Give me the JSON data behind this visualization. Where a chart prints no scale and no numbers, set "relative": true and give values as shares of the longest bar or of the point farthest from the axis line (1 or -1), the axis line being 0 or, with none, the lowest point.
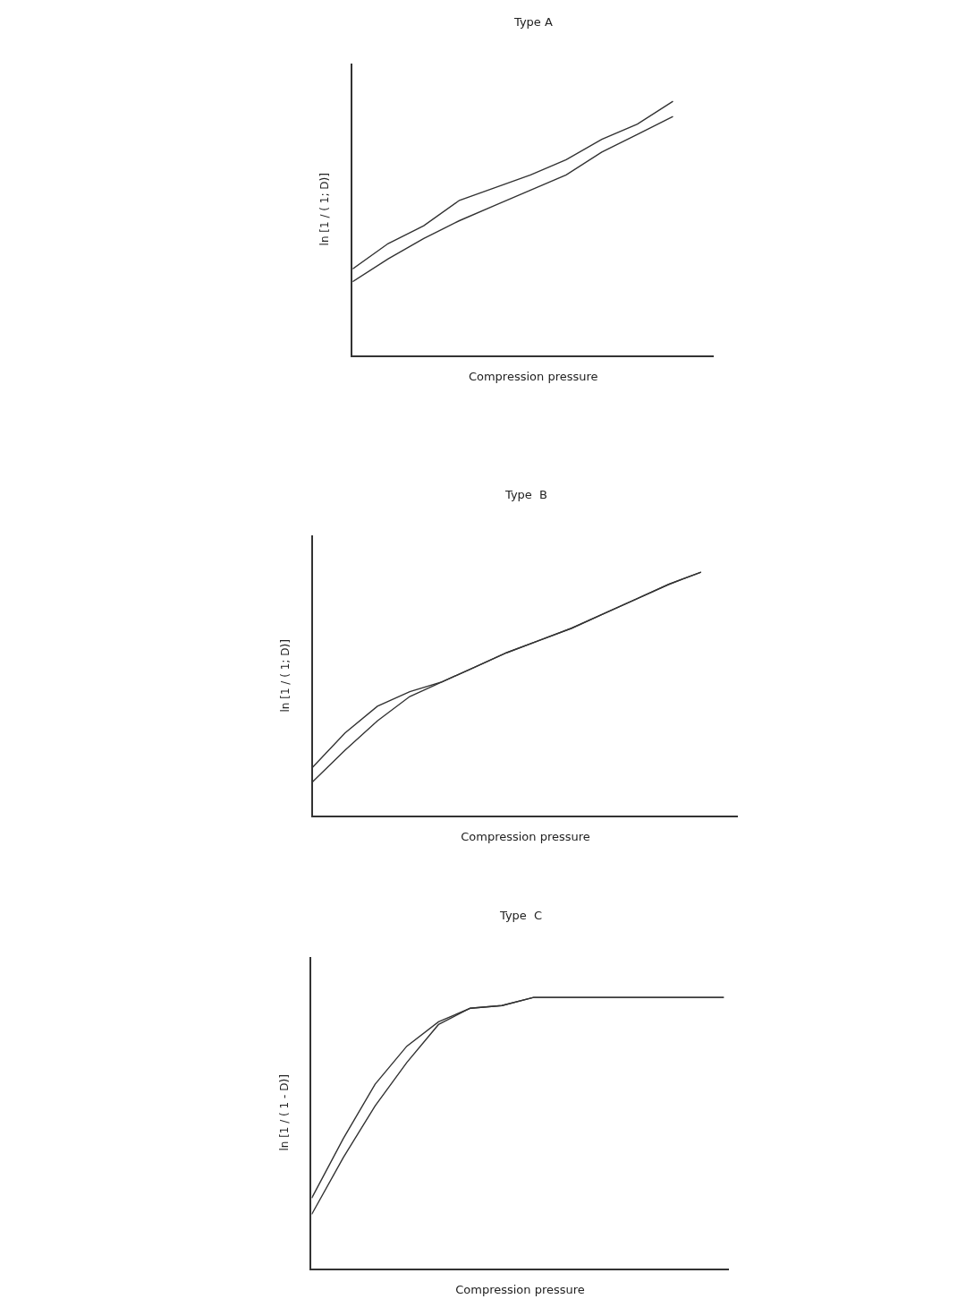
{
  "chart_data": [
    {
      "type": "line",
      "title": "Type A",
      "xlabel": "Compression pressure",
      "ylabel": "ln [1 / ( 1; D)]",
      "relative": true,
      "marker": "none",
      "line_style": "solid",
      "tick_labels": false,
      "categories": [
        null,
        null,
        null,
        null,
        null,
        null,
        null,
        null,
        null,
        null,
        null
      ],
      "series": [
        {
          "color": "#333333",
          "values": [
            0.34,
            0.44,
            0.51,
            0.61,
            0.66,
            0.71,
            0.77,
            0.85,
            0.91,
            1.0,
            null
          ]
        },
        {
          "color": "#333333",
          "values": [
            0.29,
            0.38,
            0.46,
            0.53,
            0.59,
            0.65,
            0.71,
            0.8,
            0.87,
            0.94,
            null
          ]
        }
      ]
    },
    {
      "type": "line",
      "title": "Type  B",
      "xlabel": "Compression pressure",
      "ylabel": "ln [1 / ( 1; D)]",
      "relative": true,
      "marker": "none",
      "line_style": "solid",
      "tick_labels": false,
      "categories": [
        null,
        null,
        null,
        null,
        null,
        null,
        null,
        null,
        null,
        null,
        null,
        null,
        null,
        null
      ],
      "series": [
        {
          "color": "#333333",
          "values": [
            0.2,
            0.34,
            0.45,
            0.51,
            0.55,
            0.61,
            0.67,
            0.72,
            0.77,
            0.83,
            0.89,
            0.95,
            1.0,
            null
          ]
        },
        {
          "color": "#333333",
          "values": [
            0.14,
            0.27,
            0.39,
            0.49,
            0.55,
            0.61,
            0.67,
            0.72,
            0.77,
            0.83,
            0.89,
            0.95,
            1.0,
            null
          ]
        }
      ]
    },
    {
      "type": "line",
      "title": "Type  C",
      "xlabel": "Compression pressure",
      "ylabel": "ln [1 / ( 1 - D)]",
      "relative": true,
      "marker": "none",
      "line_style": "solid",
      "tick_labels": false,
      "categories": [
        null,
        null,
        null,
        null,
        null,
        null,
        null,
        null,
        null,
        null,
        null,
        null,
        null,
        null
      ],
      "series": [
        {
          "color": "#333333",
          "values": [
            0.26,
            0.48,
            0.68,
            0.82,
            0.91,
            0.96,
            0.97,
            1.0,
            1.0,
            1.0,
            1.0,
            1.0,
            1.0,
            1.0
          ]
        },
        {
          "color": "#333333",
          "values": [
            0.2,
            0.41,
            0.6,
            0.76,
            0.9,
            0.96,
            0.97,
            1.0,
            1.0,
            1.0,
            1.0,
            1.0,
            1.0,
            1.0
          ]
        }
      ]
    }
  ]
}
